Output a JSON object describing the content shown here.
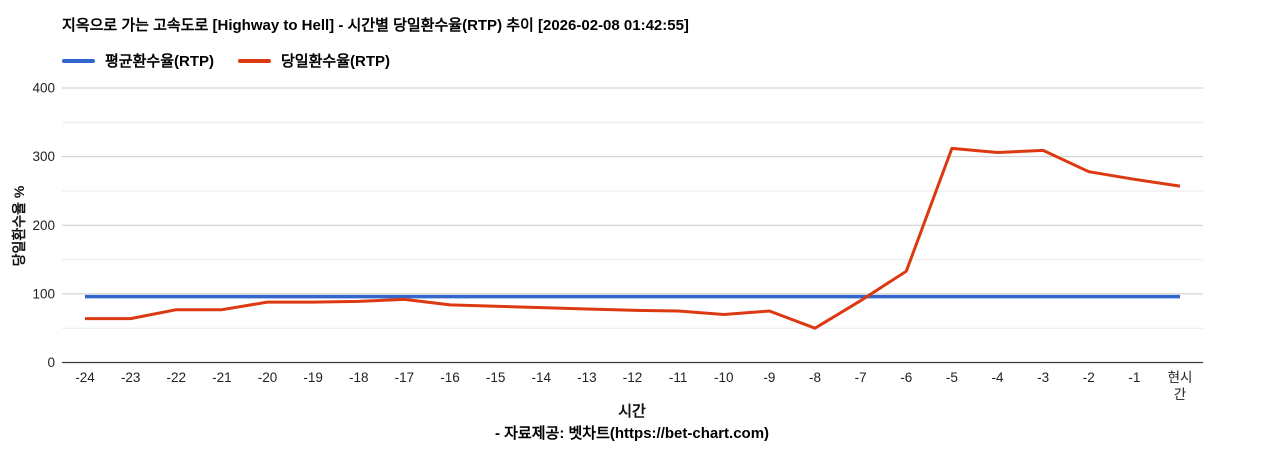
{
  "title": "지옥으로 가는 고속도로 [Highway to Hell] - 시간별 당일환수율(RTP) 추이 [2026-02-08 01:42:55]",
  "legend": [
    {
      "label": "평균환수율(RTP)",
      "color": "#3366cc"
    },
    {
      "label": "당일환수율(RTP)",
      "color": "#dc3912"
    }
  ],
  "footer": "- 자료제공: 벳차트(https://bet-chart.com)",
  "chart_data": {
    "type": "line",
    "title": "지옥으로 가는 고속도로 [Highway to Hell] - 시간별 당일환수율(RTP) 추이 [2026-02-08 01:42:55]",
    "xlabel": "시간",
    "ylabel": "당일환수율 %",
    "categories": [
      "-24",
      "-23",
      "-22",
      "-21",
      "-20",
      "-19",
      "-18",
      "-17",
      "-16",
      "-15",
      "-14",
      "-13",
      "-12",
      "-11",
      "-10",
      "-9",
      "-8",
      "-7",
      "-6",
      "-5",
      "-4",
      "-3",
      "-2",
      "-1",
      "현시간"
    ],
    "series": [
      {
        "name": "평균환수율(RTP)",
        "color": "#3366cc",
        "values": [
          96,
          96,
          96,
          96,
          96,
          96,
          96,
          96,
          96,
          96,
          96,
          96,
          96,
          96,
          96,
          96,
          96,
          96,
          96,
          96,
          96,
          96,
          96,
          96,
          96
        ]
      },
      {
        "name": "당일환수율(RTP)",
        "color": "#dc3912",
        "values": [
          64,
          64,
          77,
          77,
          88,
          88,
          89,
          92,
          84,
          82,
          80,
          78,
          76,
          75,
          70,
          75,
          50,
          90,
          133,
          312,
          306,
          309,
          278,
          267,
          257
        ]
      }
    ],
    "ylim": [
      0,
      400
    ],
    "yticks": [
      0,
      100,
      200,
      300,
      400
    ],
    "minor_yticks": [
      50,
      150,
      250,
      350
    ],
    "grid": true,
    "legend_position": "top-left",
    "axis_colors": {
      "major_grid": "#cccccc",
      "minor_grid": "#ebebeb",
      "baseline": "#3c3c3c",
      "tick_text": "#222222"
    }
  }
}
